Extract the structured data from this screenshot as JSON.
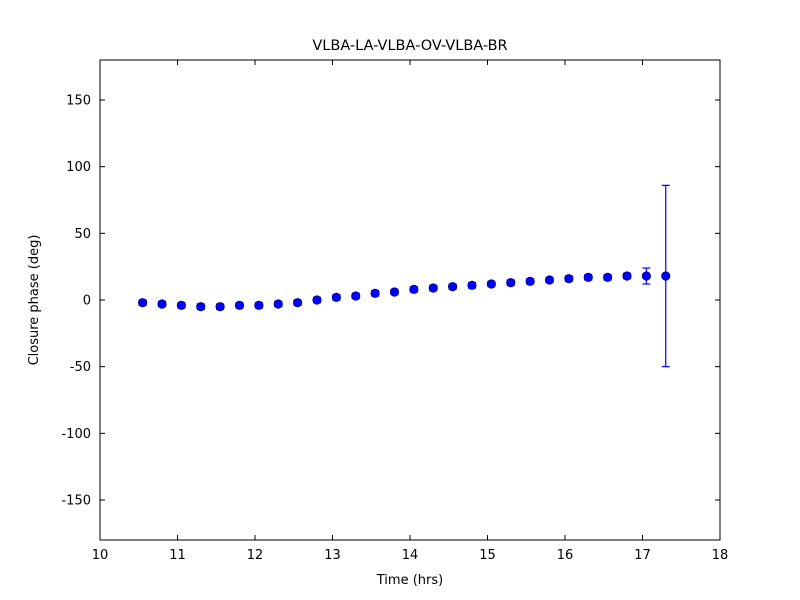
{
  "figure": {
    "background": "#ffffff",
    "axes_color": "#000000"
  },
  "chart_data": {
    "type": "scatter",
    "title": "VLBA-LA-VLBA-OV-VLBA-BR",
    "xlabel": "Time (hrs)",
    "ylabel": "Closure phase (deg)",
    "xlim": [
      10,
      18
    ],
    "ylim": [
      -180,
      180
    ],
    "xticks": [
      10,
      11,
      12,
      13,
      14,
      15,
      16,
      17,
      18
    ],
    "yticks": [
      -150,
      -100,
      -50,
      0,
      50,
      100,
      150
    ],
    "grid": false,
    "legend": "none",
    "marker_color": "#0000ff",
    "marker_edge_color": "#00008b",
    "errorbar_color": "#0000ff",
    "series": [
      {
        "name": "closure-phase",
        "marker": "o",
        "x": [
          10.55,
          10.8,
          11.05,
          11.3,
          11.55,
          11.8,
          12.05,
          12.3,
          12.55,
          12.8,
          13.05,
          13.3,
          13.55,
          13.8,
          14.05,
          14.3,
          14.55,
          14.8,
          15.05,
          15.3,
          15.55,
          15.8,
          16.05,
          16.3,
          16.55,
          16.8,
          17.05,
          17.3
        ],
        "y": [
          -2,
          -3,
          -4,
          -5,
          -5,
          -4,
          -4,
          -3,
          -2,
          0,
          2,
          3,
          5,
          6,
          8,
          9,
          10,
          11,
          12,
          13,
          14,
          15,
          16,
          17,
          17,
          18,
          18,
          18
        ],
        "yerr": [
          2,
          2,
          2,
          2,
          2,
          2,
          2,
          2,
          2,
          2,
          2,
          2,
          2,
          2,
          2,
          2,
          2,
          2,
          2,
          2,
          2,
          2,
          2,
          2,
          2,
          2,
          6,
          68
        ]
      }
    ]
  }
}
